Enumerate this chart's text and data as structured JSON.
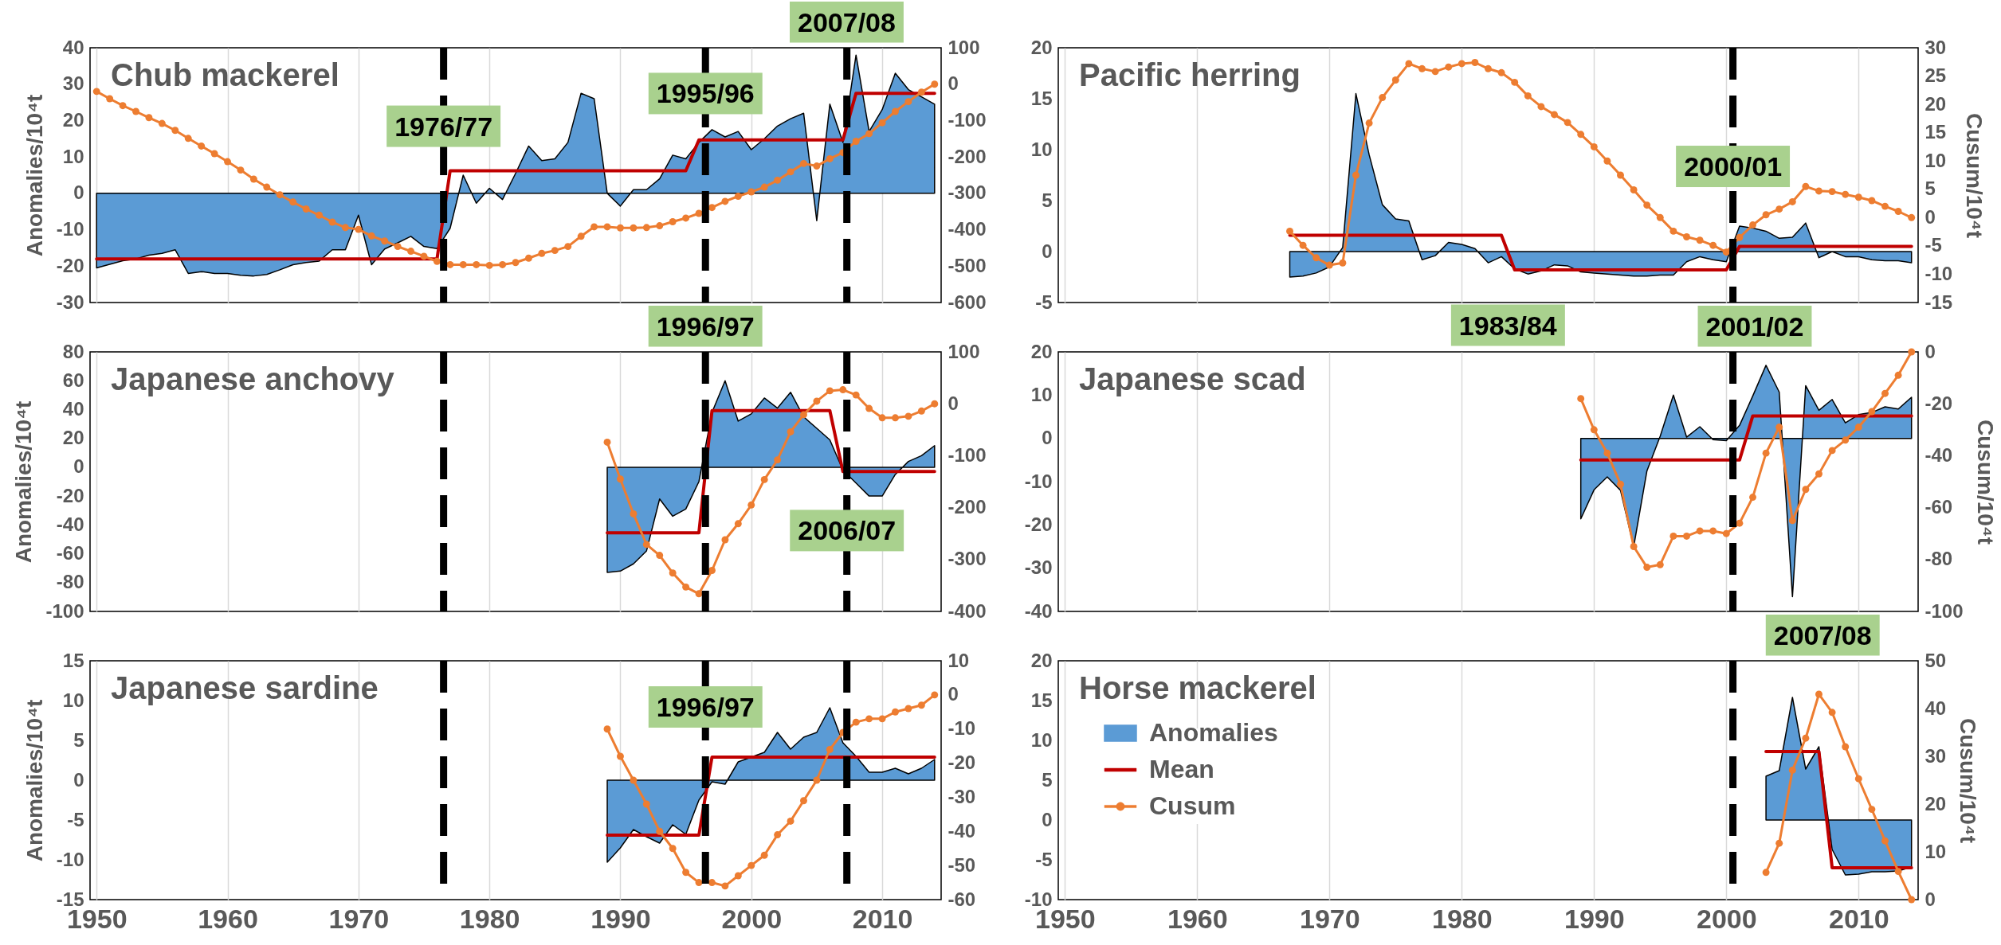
{
  "chart_data": [
    {
      "type": "area",
      "title": "Chub mackerel",
      "ylabel": "Anomalies/10⁴t",
      "x": [
        1950,
        1951,
        1952,
        1953,
        1954,
        1955,
        1956,
        1957,
        1958,
        1959,
        1960,
        1961,
        1962,
        1963,
        1964,
        1965,
        1966,
        1967,
        1968,
        1969,
        1970,
        1971,
        1972,
        1973,
        1974,
        1975,
        1976,
        1977,
        1978,
        1979,
        1980,
        1981,
        1982,
        1983,
        1984,
        1985,
        1986,
        1987,
        1988,
        1989,
        1990,
        1991,
        1992,
        1993,
        1994,
        1995,
        1996,
        1997,
        1998,
        1999,
        2000,
        2001,
        2002,
        2003,
        2004,
        2005,
        2006,
        2007,
        2008,
        2009,
        2010,
        2011,
        2012,
        2013,
        2014
      ],
      "xlim": [
        1949.5,
        2014.5
      ],
      "xticks": [
        1950,
        1960,
        1970,
        1980,
        1990,
        2000,
        2010
      ],
      "ylim": [
        -30,
        40
      ],
      "yticks": [
        -30,
        -20,
        -10,
        0,
        10,
        20,
        30,
        40
      ],
      "y2lim": [
        -600,
        100
      ],
      "y2ticks": [
        -600,
        -500,
        -400,
        -300,
        -200,
        -100,
        0,
        100
      ],
      "grid": "x",
      "tick_labels": "y",
      "series": [
        {
          "color": "#5b9bd5",
          "values": [
            -20.5,
            -19.5,
            -18.5,
            -18,
            -17,
            -16.5,
            -15.5,
            -22,
            -21.5,
            -22,
            -22,
            -22.5,
            -22.7,
            -22.3,
            -21,
            -19.6,
            -19,
            -18.6,
            -15.5,
            -15.5,
            -6,
            -19.6,
            -15.3,
            -13.6,
            -11.8,
            -14.6,
            -15.2,
            -9.6,
            5,
            -2.7,
            1.4,
            -1.7,
            5.5,
            13,
            9,
            9.5,
            14,
            27.5,
            26,
            0,
            -3.5,
            1,
            1,
            4,
            10.5,
            9.5,
            14,
            17.5,
            15.5,
            17,
            12,
            15,
            18.5,
            20.5,
            22,
            -7.5,
            24.5,
            14,
            38,
            17,
            23,
            33,
            28.5,
            26.5,
            24.5
          ]
        },
        {
          "type": "line",
          "color": "#c00000",
          "values": [
            -18,
            -18,
            -18,
            -18,
            -18,
            -18,
            -18,
            -18,
            -18,
            -18,
            -18,
            -18,
            -18,
            -18,
            -18,
            -18,
            -18,
            -18,
            -18,
            -18,
            -18,
            -18,
            -18,
            -18,
            -18,
            -18,
            -18,
            6.2,
            6.2,
            6.2,
            6.2,
            6.2,
            6.2,
            6.2,
            6.2,
            6.2,
            6.2,
            6.2,
            6.2,
            6.2,
            6.2,
            6.2,
            6.2,
            6.2,
            6.2,
            6.2,
            14.7,
            14.7,
            14.7,
            14.7,
            14.7,
            14.7,
            14.7,
            14.7,
            14.7,
            14.7,
            14.7,
            14.7,
            27.5,
            27.5,
            27.5,
            27.5,
            27.5,
            27.5,
            27.5
          ]
        },
        {
          "type": "line",
          "marker": "circle",
          "axis": "y2",
          "color": "#ed7d31",
          "values": [
            -20,
            -40,
            -59,
            -75,
            -92,
            -108,
            -127,
            -149,
            -170,
            -191,
            -213,
            -236,
            -261,
            -283,
            -304,
            -324,
            -343,
            -360,
            -379,
            -394,
            -399,
            -417,
            -431,
            -446,
            -459,
            -473,
            -487,
            -496,
            -496,
            -496,
            -498,
            -496,
            -490,
            -478,
            -465,
            -457,
            -446,
            -418,
            -392,
            -392,
            -395,
            -395,
            -394,
            -389,
            -378,
            -368,
            -355,
            -339,
            -322,
            -308,
            -296,
            -283,
            -264,
            -241,
            -218,
            -225,
            -205,
            -188,
            -157,
            -136,
            -106,
            -75,
            -48,
            -22,
            0
          ]
        }
      ],
      "ref_lines": [
        {
          "axis": "x",
          "value": 1976.5,
          "color": "#000000",
          "line_style": "dashed"
        },
        {
          "axis": "x",
          "value": 1996.5,
          "color": "#000000",
          "line_style": "dashed"
        },
        {
          "axis": "x",
          "value": 2007.3,
          "color": "#000000",
          "line_style": "dashed"
        }
      ],
      "annotations": [
        {
          "text": "1976/77",
          "x": 1976.5,
          "y": 18
        },
        {
          "text": "1995/96",
          "x": 1996.5,
          "y": 27
        },
        "2007/08"
      ]
    },
    {
      "type": "area",
      "title": "Pacific herring",
      "y2label": "Cusum/10⁴t",
      "x": [
        1967,
        1968,
        1969,
        1970,
        1971,
        1972,
        1973,
        1974,
        1975,
        1976,
        1977,
        1978,
        1979,
        1980,
        1981,
        1982,
        1983,
        1984,
        1985,
        1986,
        1987,
        1988,
        1989,
        1990,
        1991,
        1992,
        1993,
        1994,
        1995,
        1996,
        1997,
        1998,
        1999,
        2000,
        2001,
        2002,
        2003,
        2004,
        2005,
        2006,
        2007,
        2008,
        2009,
        2010,
        2011,
        2012,
        2013,
        2014
      ],
      "xlim": [
        1949.5,
        2014.5
      ],
      "xticks": [
        1950,
        1960,
        1970,
        1980,
        1990,
        2000,
        2010
      ],
      "ylim": [
        -5,
        20
      ],
      "yticks": [
        -5,
        0,
        5,
        10,
        15,
        20
      ],
      "y2lim": [
        -15,
        30
      ],
      "y2ticks": [
        -15,
        -10,
        -5,
        0,
        5,
        10,
        15,
        20,
        25,
        30
      ],
      "grid": "x",
      "tick_labels": "y",
      "series": [
        {
          "color": "#5b9bd5",
          "values": [
            -2.5,
            -2.4,
            -2.1,
            -1.5,
            0.4,
            15.5,
            9.5,
            4.6,
            3.2,
            3,
            -0.8,
            -0.4,
            0.9,
            0.7,
            0.3,
            -1.1,
            -0.5,
            -1.7,
            -2.2,
            -1.9,
            -1.3,
            -1.4,
            -2,
            -2.1,
            -2.2,
            -2.3,
            -2.4,
            -2.4,
            -2.3,
            -2.3,
            -1,
            -0.5,
            -0.8,
            -1,
            2.5,
            2.3,
            2,
            1.3,
            1.4,
            2.8,
            -0.6,
            0,
            -0.5,
            -0.5,
            -0.8,
            -0.9,
            -0.9,
            -1.1
          ]
        },
        {
          "type": "line",
          "color": "#c00000",
          "values": [
            1.6,
            1.6,
            1.6,
            1.6,
            1.6,
            1.6,
            1.6,
            1.6,
            1.6,
            1.6,
            1.6,
            1.6,
            1.6,
            1.6,
            1.6,
            1.6,
            1.6,
            -1.8,
            -1.8,
            -1.8,
            -1.8,
            -1.8,
            -1.8,
            -1.8,
            -1.8,
            -1.8,
            -1.8,
            -1.8,
            -1.8,
            -1.8,
            -1.8,
            -1.8,
            -1.8,
            -1.8,
            0.5,
            0.5,
            0.5,
            0.5,
            0.5,
            0.5,
            0.5,
            0.5,
            0.5,
            0.5,
            0.5,
            0.5,
            0.5,
            0.5
          ]
        },
        {
          "type": "line",
          "marker": "circle",
          "axis": "y2",
          "color": "#ed7d31",
          "values": [
            -2.4,
            -4.9,
            -7.1,
            -8.4,
            -8,
            7.5,
            16.7,
            21.2,
            24.3,
            27.2,
            26.3,
            25.8,
            26.6,
            27.2,
            27.4,
            26.3,
            25.6,
            23.9,
            21.5,
            19.6,
            18.2,
            16.8,
            14.7,
            12.5,
            10,
            7.5,
            4.9,
            2.2,
            0,
            -2.4,
            -3.4,
            -4,
            -4.9,
            -6.1,
            -3.5,
            -1.3,
            0.5,
            1.5,
            2.8,
            5.5,
            4.7,
            4.6,
            4.1,
            3.6,
            3,
            2,
            1.1,
            0
          ]
        }
      ],
      "ref_lines": [
        {
          "axis": "x",
          "value": 2000.5,
          "color": "#000000",
          "line_style": "dashed"
        }
      ],
      "annotations": [
        {
          "text": "2000/01",
          "x": 2000.5,
          "y": 8.2
        },
        "1983/84"
      ]
    },
    {
      "type": "area",
      "title": "Japanese anchovy",
      "ylabel": "Anomalies/10⁴t",
      "x": [
        1989,
        1990,
        1991,
        1992,
        1993,
        1994,
        1995,
        1996,
        1997,
        1998,
        1999,
        2000,
        2001,
        2002,
        2003,
        2004,
        2005,
        2006,
        2007,
        2008,
        2009,
        2010,
        2011,
        2012,
        2013,
        2014
      ],
      "xlim": [
        1949.5,
        2014.5
      ],
      "xticks": [
        1950,
        1960,
        1970,
        1980,
        1990,
        2000,
        2010
      ],
      "ylim": [
        -100,
        80
      ],
      "yticks": [
        -100,
        -80,
        -60,
        -40,
        -20,
        0,
        20,
        40,
        60,
        80
      ],
      "y2lim": [
        -400,
        100
      ],
      "y2ticks": [
        -400,
        -300,
        -200,
        -100,
        0,
        100
      ],
      "grid": "x",
      "tick_labels": "y",
      "series": [
        {
          "color": "#5b9bd5",
          "values": [
            -73,
            -72,
            -67,
            -58,
            -22,
            -34,
            -29,
            -10,
            38,
            60,
            32,
            37,
            48,
            41,
            52,
            35,
            27,
            19,
            -2,
            -11,
            -20,
            -20,
            -5,
            4,
            8,
            15
          ]
        },
        {
          "type": "line",
          "color": "#c00000",
          "values": [
            -45.5,
            -45.5,
            -45.5,
            -45.5,
            -45.5,
            -45.5,
            -45.5,
            -45.5,
            39.3,
            39.3,
            39.3,
            39.3,
            39.3,
            39.3,
            39.3,
            39.3,
            39.3,
            39.3,
            -3,
            -3,
            -3,
            -3,
            -3,
            -3,
            -3,
            -3
          ]
        },
        {
          "type": "line",
          "marker": "circle",
          "axis": "y2",
          "color": "#ed7d31",
          "values": [
            -74,
            -145,
            -212,
            -271,
            -292,
            -326,
            -353,
            -366,
            -321,
            -262,
            -231,
            -195,
            -146,
            -108,
            -54,
            -21,
            5,
            25,
            27,
            17,
            -9,
            -27,
            -27,
            -24,
            -14,
            0
          ]
        }
      ],
      "ref_lines": [
        {
          "axis": "x",
          "value": 1976.5,
          "color": "#000000",
          "line_style": "dashed"
        },
        {
          "axis": "x",
          "value": 1996.5,
          "color": "#000000",
          "line_style": "dashed"
        },
        {
          "axis": "x",
          "value": 2007.3,
          "color": "#000000",
          "line_style": "dashed"
        }
      ],
      "annotations": [
        "1996/97",
        {
          "text": "2006/07",
          "x": 2007.3,
          "y": -45
        }
      ]
    },
    {
      "type": "area",
      "title": "Japanese scad",
      "y2label": "Cusum/10⁴t",
      "x": [
        1989,
        1990,
        1991,
        1992,
        1993,
        1994,
        1995,
        1996,
        1997,
        1998,
        1999,
        2000,
        2001,
        2002,
        2003,
        2004,
        2005,
        2006,
        2007,
        2008,
        2009,
        2010,
        2011,
        2012,
        2013,
        2014
      ],
      "xlim": [
        1949.5,
        2014.5
      ],
      "xticks": [
        1950,
        1960,
        1970,
        1980,
        1990,
        2000,
        2010
      ],
      "ylim": [
        -40,
        20
      ],
      "yticks": [
        -40,
        -30,
        -20,
        -10,
        0,
        10,
        20
      ],
      "y2lim": [
        -100,
        0
      ],
      "y2ticks": [
        -100,
        -80,
        -60,
        -40,
        -20,
        0
      ],
      "grid": "x",
      "tick_labels": "y",
      "series": [
        {
          "color": "#5b9bd5",
          "values": [
            -18.6,
            -11.9,
            -8.9,
            -12,
            -25,
            -7.5,
            0.5,
            10,
            0.3,
            2.7,
            -0.3,
            -0.5,
            3,
            9.8,
            16.9,
            10.7,
            -36.6,
            12.2,
            6.5,
            9,
            3.6,
            5.5,
            6,
            7.3,
            6.8,
            9.5
          ]
        },
        {
          "type": "line",
          "color": "#c00000",
          "values": [
            -5,
            -5,
            -5,
            -5,
            -5,
            -5,
            -5,
            -5,
            -5,
            -5,
            -5,
            -5,
            -5,
            5.2,
            5.2,
            5.2,
            5.2,
            5.2,
            5.2,
            5.2,
            5.2,
            5.2,
            5.2,
            5.2,
            5.2,
            5.2
          ]
        },
        {
          "type": "line",
          "marker": "circle",
          "axis": "y2",
          "color": "#ed7d31",
          "values": [
            -18,
            -30,
            -39,
            -51,
            -75,
            -83,
            -82,
            -71,
            -71,
            -69,
            -69,
            -70,
            -66,
            -56,
            -39,
            -29,
            -65,
            -53,
            -47,
            -38,
            -34,
            -29,
            -23,
            -16,
            -9,
            0
          ]
        }
      ],
      "ref_lines": [
        {
          "axis": "x",
          "value": 2000.5,
          "color": "#000000",
          "line_style": "dashed"
        }
      ],
      "annotations": [
        "2001/02"
      ]
    },
    {
      "type": "area",
      "title": "Japanese sardine",
      "ylabel": "Anomalies/10⁴t",
      "x": [
        1989,
        1990,
        1991,
        1992,
        1993,
        1994,
        1995,
        1996,
        1997,
        1998,
        1999,
        2000,
        2001,
        2002,
        2003,
        2004,
        2005,
        2006,
        2007,
        2008,
        2009,
        2010,
        2011,
        2012,
        2013,
        2014
      ],
      "xlim": [
        1949.5,
        2014.5
      ],
      "xticks": [
        1950,
        1960,
        1970,
        1980,
        1990,
        2000,
        2010
      ],
      "ylim": [
        -15,
        15
      ],
      "yticks": [
        -15,
        -10,
        -5,
        0,
        5,
        10,
        15
      ],
      "y2lim": [
        -60,
        10
      ],
      "y2ticks": [
        -60,
        -50,
        -40,
        -30,
        -20,
        -10,
        0,
        10
      ],
      "grid": "x",
      "series": [
        {
          "color": "#5b9bd5",
          "values": [
            -10.3,
            -8.5,
            -6.2,
            -7.1,
            -7.9,
            -5.6,
            -6.8,
            -2.5,
            -0.2,
            -0.5,
            2.3,
            2.9,
            3.5,
            6,
            3.9,
            5.4,
            6,
            9.1,
            4.7,
            3,
            1,
            1,
            1.5,
            0.8,
            1.5,
            2.6
          ]
        },
        {
          "type": "line",
          "color": "#c00000",
          "values": [
            -6.9,
            -6.9,
            -6.9,
            -6.9,
            -6.9,
            -6.9,
            -6.9,
            -6.9,
            2.9,
            2.9,
            2.9,
            2.9,
            2.9,
            2.9,
            2.9,
            2.9,
            2.9,
            2.9,
            2.9,
            2.9,
            2.9,
            2.9,
            2.9,
            2.9,
            2.9,
            2.9
          ]
        },
        {
          "type": "line",
          "marker": "circle",
          "axis": "y2",
          "color": "#ed7d31",
          "values": [
            -10,
            -18,
            -25,
            -32,
            -40,
            -45,
            -52,
            -55,
            -55,
            -56,
            -53,
            -50,
            -47,
            -41,
            -37,
            -31,
            -25,
            -16,
            -11,
            -8,
            -7,
            -7,
            -5,
            -4,
            -3,
            0
          ]
        }
      ],
      "ref_lines": [
        {
          "axis": "x",
          "value": 1976.5,
          "color": "#000000",
          "line_style": "dashed"
        },
        {
          "axis": "x",
          "value": 1996.5,
          "color": "#000000",
          "line_style": "dashed"
        },
        {
          "axis": "x",
          "value": 2007.3,
          "color": "#000000",
          "line_style": "dashed"
        }
      ],
      "annotations": [
        {
          "text": "1996/97",
          "x": 1996.5,
          "y": 9
        }
      ]
    },
    {
      "type": "area",
      "title": "Horse mackerel",
      "y2label": "Cusum/10⁴t",
      "x": [
        2003,
        2004,
        2005,
        2006,
        2007,
        2008,
        2009,
        2010,
        2011,
        2012,
        2013,
        2014
      ],
      "xlim": [
        1949.5,
        2014.5
      ],
      "xticks": [
        1950,
        1960,
        1970,
        1980,
        1990,
        2000,
        2010
      ],
      "ylim": [
        -10,
        20
      ],
      "yticks": [
        -10,
        -5,
        0,
        5,
        10,
        15,
        20
      ],
      "y2lim": [
        0,
        50
      ],
      "y2ticks": [
        0,
        10,
        20,
        30,
        40,
        50
      ],
      "grid": "x",
      "legend": "left",
      "series": [
        {
          "name": "Anomalies",
          "color": "#5b9bd5",
          "values": [
            5.5,
            6.2,
            15.4,
            6.4,
            9.2,
            -3.7,
            -6.9,
            -6.8,
            -6.5,
            -6.5,
            -6.4,
            -5.9
          ]
        },
        {
          "name": "Mean",
          "type": "line",
          "color": "#c00000",
          "values": [
            8.6,
            8.6,
            8.6,
            8.6,
            8.6,
            -6,
            -6,
            -6,
            -6,
            -6,
            -6,
            -6
          ]
        },
        {
          "name": "Cusum",
          "type": "line",
          "marker": "circle",
          "axis": "y2",
          "color": "#ed7d31",
          "values": [
            5.7,
            11.8,
            27.1,
            33.8,
            43,
            39.2,
            32,
            25.3,
            18.9,
            12.3,
            5.9,
            0
          ]
        }
      ],
      "ref_lines": [
        {
          "axis": "x",
          "value": 2000.5,
          "color": "#000000",
          "line_style": "dashed"
        }
      ],
      "annotations": [
        "2007/08"
      ]
    }
  ]
}
